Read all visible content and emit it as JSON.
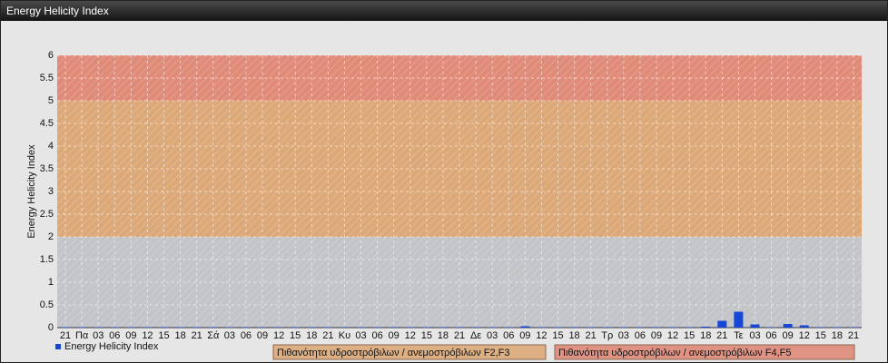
{
  "header": {
    "title": "Energy Helicity Index"
  },
  "chart_data": {
    "type": "bar",
    "y_label": "Energy Helicity Index",
    "categories": [
      "21",
      "Πα",
      "03",
      "06",
      "09",
      "12",
      "15",
      "18",
      "21",
      "Σά",
      "03",
      "06",
      "09",
      "12",
      "15",
      "18",
      "21",
      "Κυ",
      "03",
      "06",
      "09",
      "12",
      "15",
      "18",
      "21",
      "Δε",
      "03",
      "06",
      "09",
      "12",
      "15",
      "18",
      "21",
      "Τρ",
      "03",
      "06",
      "09",
      "12",
      "15",
      "18",
      "21",
      "Τε",
      "03",
      "06",
      "09",
      "12",
      "15",
      "18",
      "21"
    ],
    "series": [
      {
        "name": "Energy Helicity Index",
        "color": "#1446d8",
        "values": [
          0.01,
          0.01,
          0.01,
          0.01,
          0.01,
          0.01,
          0.01,
          0.01,
          0.01,
          0.01,
          0.01,
          0.01,
          0.01,
          0.01,
          0.01,
          0.01,
          0.01,
          0.01,
          0.01,
          0.01,
          0.01,
          0.01,
          0.01,
          0.01,
          0.01,
          0.01,
          0.01,
          0.01,
          0.03,
          0.01,
          0.01,
          0.01,
          0.01,
          0.01,
          0.01,
          0.01,
          0.01,
          0.01,
          0.01,
          0.02,
          0.15,
          0.35,
          0.07,
          0.01,
          0.08,
          0.05,
          0.01,
          0.01,
          0.01
        ]
      }
    ],
    "bands": [
      {
        "from": 0,
        "to": 2,
        "color": "#c2c4c8"
      },
      {
        "from": 2,
        "to": 5,
        "color": "#dca878",
        "label": "Πιθανότητα υδροστρόβιλων / ανεμοστρόβιλων F2,F3"
      },
      {
        "from": 5,
        "to": 6,
        "color": "#e08a78",
        "label": "Πιθανότητα υδροστρόβιλων / ανεμοστρόβιλων F4,F5"
      }
    ],
    "ylim": [
      0,
      6
    ],
    "yticks": [
      0,
      0.5,
      1,
      1.5,
      2,
      2.5,
      3,
      3.5,
      4,
      4.5,
      5,
      5.5,
      6
    ],
    "grid": true
  }
}
